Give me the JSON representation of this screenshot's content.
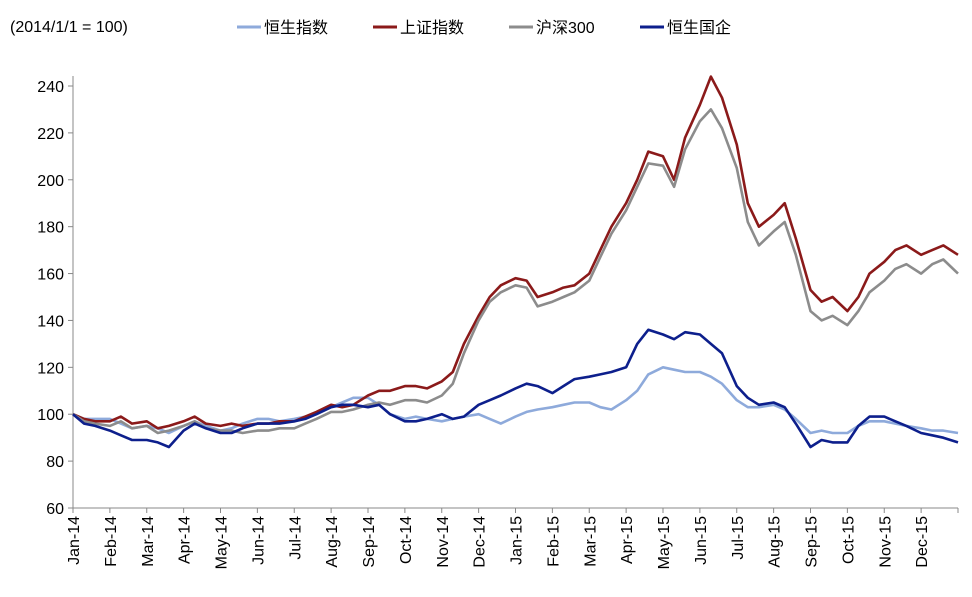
{
  "chart_data": {
    "type": "line",
    "title": "",
    "note": "(2014/1/1 = 100)",
    "xlabel": "",
    "ylabel": "",
    "ylim": [
      60,
      240
    ],
    "yticks": [
      60,
      80,
      100,
      120,
      140,
      160,
      180,
      200,
      220,
      240
    ],
    "grid": false,
    "legend_position": "top",
    "categories": [
      "Jan-14",
      "Feb-14",
      "Mar-14",
      "Apr-14",
      "May-14",
      "Jun-14",
      "Jul-14",
      "Aug-14",
      "Sep-14",
      "Oct-14",
      "Nov-14",
      "Dec-14",
      "Jan-15",
      "Feb-15",
      "Mar-15",
      "Apr-15",
      "May-15",
      "Jun-15",
      "Jul-15",
      "Aug-15",
      "Sep-15",
      "Oct-15",
      "Nov-15",
      "Dec-15"
    ],
    "series": [
      {
        "name": "恒生指数",
        "color": "#8eaadb",
        "points": [
          [
            0,
            100
          ],
          [
            0.3,
            98
          ],
          [
            0.6,
            98
          ],
          [
            1,
            98
          ],
          [
            1.3,
            96
          ],
          [
            1.6,
            94
          ],
          [
            2,
            95
          ],
          [
            2.3,
            94
          ],
          [
            2.6,
            92
          ],
          [
            3,
            95
          ],
          [
            3.3,
            97
          ],
          [
            3.6,
            95
          ],
          [
            4,
            93
          ],
          [
            4.3,
            94
          ],
          [
            4.6,
            96
          ],
          [
            5,
            98
          ],
          [
            5.3,
            98
          ],
          [
            5.6,
            97
          ],
          [
            6,
            98
          ],
          [
            6.3,
            99
          ],
          [
            6.6,
            100
          ],
          [
            7,
            103
          ],
          [
            7.3,
            105
          ],
          [
            7.6,
            107
          ],
          [
            8,
            107
          ],
          [
            8.3,
            104
          ],
          [
            8.6,
            100
          ],
          [
            9,
            98
          ],
          [
            9.3,
            99
          ],
          [
            9.6,
            98
          ],
          [
            10,
            97
          ],
          [
            10.3,
            98
          ],
          [
            10.6,
            99
          ],
          [
            11,
            100
          ],
          [
            11.3,
            98
          ],
          [
            11.6,
            96
          ],
          [
            12,
            99
          ],
          [
            12.3,
            101
          ],
          [
            12.6,
            102
          ],
          [
            13,
            103
          ],
          [
            13.3,
            104
          ],
          [
            13.6,
            105
          ],
          [
            14,
            105
          ],
          [
            14.3,
            103
          ],
          [
            14.6,
            102
          ],
          [
            15,
            106
          ],
          [
            15.3,
            110
          ],
          [
            15.6,
            117
          ],
          [
            16,
            120
          ],
          [
            16.3,
            119
          ],
          [
            16.6,
            118
          ],
          [
            17,
            118
          ],
          [
            17.3,
            116
          ],
          [
            17.6,
            113
          ],
          [
            18,
            106
          ],
          [
            18.3,
            103
          ],
          [
            18.6,
            103
          ],
          [
            19,
            104
          ],
          [
            19.3,
            102
          ],
          [
            19.6,
            98
          ],
          [
            20,
            92
          ],
          [
            20.3,
            93
          ],
          [
            20.6,
            92
          ],
          [
            21,
            92
          ],
          [
            21.3,
            95
          ],
          [
            21.6,
            97
          ],
          [
            22,
            97
          ],
          [
            22.3,
            96
          ],
          [
            22.6,
            95
          ],
          [
            23,
            94
          ],
          [
            23.3,
            93
          ],
          [
            23.6,
            93
          ],
          [
            24,
            92
          ]
        ]
      },
      {
        "name": "上证指数",
        "color": "#8b1a1a",
        "points": [
          [
            0,
            100
          ],
          [
            0.3,
            98
          ],
          [
            0.6,
            97
          ],
          [
            1,
            97
          ],
          [
            1.3,
            99
          ],
          [
            1.6,
            96
          ],
          [
            2,
            97
          ],
          [
            2.3,
            94
          ],
          [
            2.6,
            95
          ],
          [
            3,
            97
          ],
          [
            3.3,
            99
          ],
          [
            3.6,
            96
          ],
          [
            4,
            95
          ],
          [
            4.3,
            96
          ],
          [
            4.6,
            95
          ],
          [
            5,
            96
          ],
          [
            5.3,
            96
          ],
          [
            5.6,
            97
          ],
          [
            6,
            97
          ],
          [
            6.3,
            99
          ],
          [
            6.6,
            101
          ],
          [
            7,
            104
          ],
          [
            7.3,
            103
          ],
          [
            7.6,
            104
          ],
          [
            8,
            108
          ],
          [
            8.3,
            110
          ],
          [
            8.6,
            110
          ],
          [
            9,
            112
          ],
          [
            9.3,
            112
          ],
          [
            9.6,
            111
          ],
          [
            10,
            114
          ],
          [
            10.3,
            118
          ],
          [
            10.6,
            130
          ],
          [
            11,
            142
          ],
          [
            11.3,
            150
          ],
          [
            11.6,
            155
          ],
          [
            12,
            158
          ],
          [
            12.3,
            157
          ],
          [
            12.6,
            150
          ],
          [
            13,
            152
          ],
          [
            13.3,
            154
          ],
          [
            13.6,
            155
          ],
          [
            14,
            160
          ],
          [
            14.3,
            170
          ],
          [
            14.6,
            180
          ],
          [
            15,
            190
          ],
          [
            15.3,
            200
          ],
          [
            15.6,
            212
          ],
          [
            16,
            210
          ],
          [
            16.3,
            200
          ],
          [
            16.6,
            218
          ],
          [
            17,
            232
          ],
          [
            17.3,
            244
          ],
          [
            17.6,
            235
          ],
          [
            18,
            215
          ],
          [
            18.3,
            190
          ],
          [
            18.6,
            180
          ],
          [
            19,
            185
          ],
          [
            19.3,
            190
          ],
          [
            19.6,
            175
          ],
          [
            20,
            153
          ],
          [
            20.3,
            148
          ],
          [
            20.6,
            150
          ],
          [
            21,
            144
          ],
          [
            21.3,
            150
          ],
          [
            21.6,
            160
          ],
          [
            22,
            165
          ],
          [
            22.3,
            170
          ],
          [
            22.6,
            172
          ],
          [
            23,
            168
          ],
          [
            23.3,
            170
          ],
          [
            23.6,
            172
          ],
          [
            24,
            168
          ]
        ]
      },
      {
        "name": "沪深300",
        "color": "#8c8c8c",
        "points": [
          [
            0,
            100
          ],
          [
            0.3,
            97
          ],
          [
            0.6,
            96
          ],
          [
            1,
            95
          ],
          [
            1.3,
            97
          ],
          [
            1.6,
            94
          ],
          [
            2,
            95
          ],
          [
            2.3,
            92
          ],
          [
            2.6,
            93
          ],
          [
            3,
            95
          ],
          [
            3.3,
            97
          ],
          [
            3.6,
            94
          ],
          [
            4,
            93
          ],
          [
            4.3,
            93
          ],
          [
            4.6,
            92
          ],
          [
            5,
            93
          ],
          [
            5.3,
            93
          ],
          [
            5.6,
            94
          ],
          [
            6,
            94
          ],
          [
            6.3,
            96
          ],
          [
            6.6,
            98
          ],
          [
            7,
            101
          ],
          [
            7.3,
            101
          ],
          [
            7.6,
            102
          ],
          [
            8,
            104
          ],
          [
            8.3,
            105
          ],
          [
            8.6,
            104
          ],
          [
            9,
            106
          ],
          [
            9.3,
            106
          ],
          [
            9.6,
            105
          ],
          [
            10,
            108
          ],
          [
            10.3,
            113
          ],
          [
            10.6,
            126
          ],
          [
            11,
            140
          ],
          [
            11.3,
            148
          ],
          [
            11.6,
            152
          ],
          [
            12,
            155
          ],
          [
            12.3,
            154
          ],
          [
            12.6,
            146
          ],
          [
            13,
            148
          ],
          [
            13.3,
            150
          ],
          [
            13.6,
            152
          ],
          [
            14,
            157
          ],
          [
            14.3,
            167
          ],
          [
            14.6,
            177
          ],
          [
            15,
            187
          ],
          [
            15.3,
            197
          ],
          [
            15.6,
            207
          ],
          [
            16,
            206
          ],
          [
            16.3,
            197
          ],
          [
            16.6,
            213
          ],
          [
            17,
            225
          ],
          [
            17.3,
            230
          ],
          [
            17.6,
            222
          ],
          [
            18,
            205
          ],
          [
            18.3,
            182
          ],
          [
            18.6,
            172
          ],
          [
            19,
            178
          ],
          [
            19.3,
            182
          ],
          [
            19.6,
            168
          ],
          [
            20,
            144
          ],
          [
            20.3,
            140
          ],
          [
            20.6,
            142
          ],
          [
            21,
            138
          ],
          [
            21.3,
            144
          ],
          [
            21.6,
            152
          ],
          [
            22,
            157
          ],
          [
            22.3,
            162
          ],
          [
            22.6,
            164
          ],
          [
            23,
            160
          ],
          [
            23.3,
            164
          ],
          [
            23.6,
            166
          ],
          [
            24,
            160
          ]
        ]
      },
      {
        "name": "恒生国企",
        "color": "#0d1f8c",
        "points": [
          [
            0,
            100
          ],
          [
            0.3,
            96
          ],
          [
            0.6,
            95
          ],
          [
            1,
            93
          ],
          [
            1.3,
            91
          ],
          [
            1.6,
            89
          ],
          [
            2,
            89
          ],
          [
            2.3,
            88
          ],
          [
            2.6,
            86
          ],
          [
            3,
            93
          ],
          [
            3.3,
            96
          ],
          [
            3.6,
            94
          ],
          [
            4,
            92
          ],
          [
            4.3,
            92
          ],
          [
            4.6,
            94
          ],
          [
            5,
            96
          ],
          [
            5.3,
            96
          ],
          [
            5.6,
            96
          ],
          [
            6,
            97
          ],
          [
            6.3,
            98
          ],
          [
            6.6,
            100
          ],
          [
            7,
            103
          ],
          [
            7.3,
            104
          ],
          [
            7.6,
            104
          ],
          [
            8,
            103
          ],
          [
            8.3,
            104
          ],
          [
            8.6,
            100
          ],
          [
            9,
            97
          ],
          [
            9.3,
            97
          ],
          [
            9.6,
            98
          ],
          [
            10,
            100
          ],
          [
            10.3,
            98
          ],
          [
            10.6,
            99
          ],
          [
            11,
            104
          ],
          [
            11.3,
            106
          ],
          [
            11.6,
            108
          ],
          [
            12,
            111
          ],
          [
            12.3,
            113
          ],
          [
            12.6,
            112
          ],
          [
            13,
            109
          ],
          [
            13.3,
            112
          ],
          [
            13.6,
            115
          ],
          [
            14,
            116
          ],
          [
            14.3,
            117
          ],
          [
            14.6,
            118
          ],
          [
            15,
            120
          ],
          [
            15.3,
            130
          ],
          [
            15.6,
            136
          ],
          [
            16,
            134
          ],
          [
            16.3,
            132
          ],
          [
            16.6,
            135
          ],
          [
            17,
            134
          ],
          [
            17.3,
            130
          ],
          [
            17.6,
            126
          ],
          [
            18,
            112
          ],
          [
            18.3,
            107
          ],
          [
            18.6,
            104
          ],
          [
            19,
            105
          ],
          [
            19.3,
            103
          ],
          [
            19.6,
            96
          ],
          [
            20,
            86
          ],
          [
            20.3,
            89
          ],
          [
            20.6,
            88
          ],
          [
            21,
            88
          ],
          [
            21.3,
            95
          ],
          [
            21.6,
            99
          ],
          [
            22,
            99
          ],
          [
            22.3,
            97
          ],
          [
            22.6,
            95
          ],
          [
            23,
            92
          ],
          [
            23.3,
            91
          ],
          [
            23.6,
            90
          ],
          [
            24,
            88
          ]
        ]
      }
    ]
  }
}
